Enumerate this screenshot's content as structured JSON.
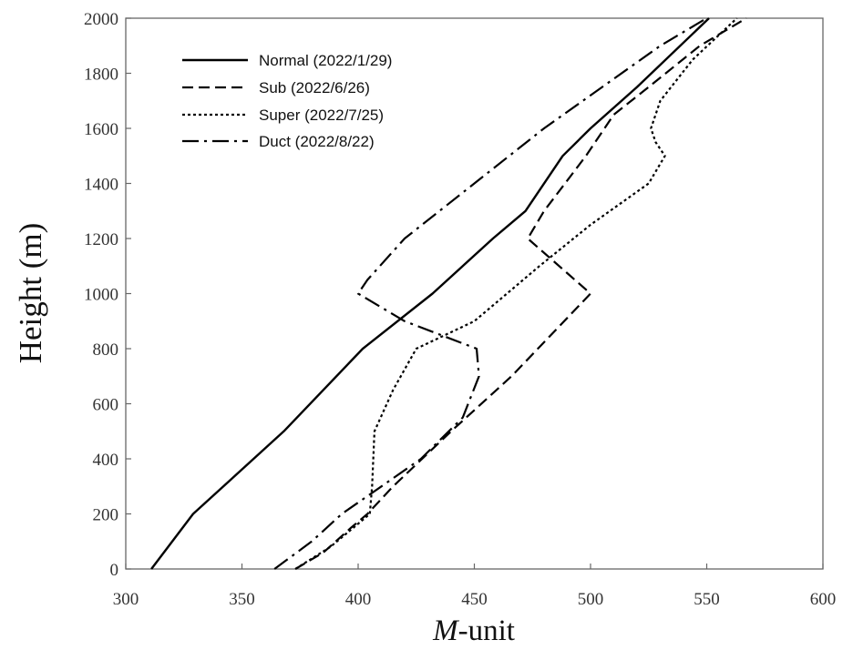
{
  "chart_data": {
    "type": "line",
    "title": "",
    "xlabel_prefix": "M",
    "xlabel_suffix": "-unit",
    "ylabel": "Height (m)",
    "xlim": [
      300,
      600
    ],
    "ylim": [
      0,
      2000
    ],
    "xticks": [
      300,
      350,
      400,
      450,
      500,
      550,
      600
    ],
    "yticks": [
      0,
      200,
      400,
      600,
      800,
      1000,
      1200,
      1400,
      1600,
      1800,
      2000
    ],
    "grid": false,
    "legend_position": "top-left",
    "series": [
      {
        "name": "Normal (2022/1/29)",
        "style": "solid",
        "color": "#000000",
        "points": [
          [
            311,
            0
          ],
          [
            329,
            200
          ],
          [
            368,
            500
          ],
          [
            402,
            800
          ],
          [
            432,
            1000
          ],
          [
            458,
            1200
          ],
          [
            472,
            1300
          ],
          [
            488,
            1500
          ],
          [
            500,
            1600
          ],
          [
            520,
            1750
          ],
          [
            551,
            2000
          ]
        ]
      },
      {
        "name": "Sub (2022/6/26)",
        "style": "dashed",
        "color": "#000000",
        "points": [
          [
            373,
            0
          ],
          [
            385,
            60
          ],
          [
            397,
            150
          ],
          [
            404,
            200
          ],
          [
            415,
            300
          ],
          [
            440,
            500
          ],
          [
            466,
            700
          ],
          [
            500,
            1000
          ],
          [
            473,
            1200
          ],
          [
            480,
            1300
          ],
          [
            498,
            1500
          ],
          [
            510,
            1650
          ],
          [
            525,
            1750
          ],
          [
            547,
            1900
          ],
          [
            567,
            2000
          ]
        ]
      },
      {
        "name": "Super (2022/7/25)",
        "style": "dotted",
        "color": "#000000",
        "points": [
          [
            373,
            0
          ],
          [
            388,
            80
          ],
          [
            398,
            150
          ],
          [
            405,
            200
          ],
          [
            406,
            300
          ],
          [
            407,
            500
          ],
          [
            415,
            650
          ],
          [
            425,
            800
          ],
          [
            450,
            900
          ],
          [
            478,
            1100
          ],
          [
            500,
            1250
          ],
          [
            525,
            1400
          ],
          [
            532,
            1500
          ],
          [
            528,
            1550
          ],
          [
            526,
            1600
          ],
          [
            530,
            1700
          ],
          [
            544,
            1850
          ],
          [
            563,
            2000
          ]
        ]
      },
      {
        "name": "Duct (2022/8/22)",
        "style": "dashdot",
        "color": "#000000",
        "points": [
          [
            364,
            0
          ],
          [
            380,
            100
          ],
          [
            393,
            200
          ],
          [
            410,
            300
          ],
          [
            427,
            400
          ],
          [
            445,
            550
          ],
          [
            452,
            700
          ],
          [
            451,
            800
          ],
          [
            420,
            900
          ],
          [
            400,
            1000
          ],
          [
            404,
            1050
          ],
          [
            420,
            1200
          ],
          [
            450,
            1400
          ],
          [
            480,
            1600
          ],
          [
            505,
            1750
          ],
          [
            530,
            1900
          ],
          [
            550,
            2000
          ]
        ]
      }
    ]
  }
}
